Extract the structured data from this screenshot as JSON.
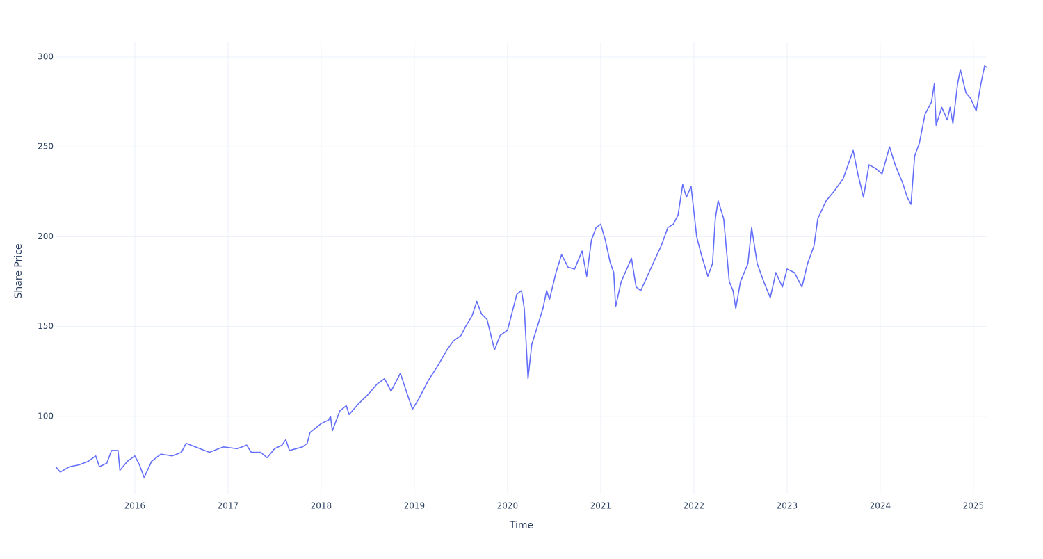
{
  "chart_data": {
    "type": "line",
    "x_label": "Time",
    "y_label": "Share Price",
    "x": [
      2015.15,
      2015.2,
      2015.3,
      2015.4,
      2015.5,
      2015.58,
      2015.62,
      2015.7,
      2015.75,
      2015.82,
      2015.84,
      2015.92,
      2016.0,
      2016.05,
      2016.1,
      2016.18,
      2016.28,
      2016.4,
      2016.5,
      2016.55,
      2016.7,
      2016.8,
      2016.95,
      2017.1,
      2017.2,
      2017.25,
      2017.35,
      2017.42,
      2017.5,
      2017.58,
      2017.62,
      2017.66,
      2017.8,
      2017.85,
      2017.88,
      2018.0,
      2018.08,
      2018.1,
      2018.12,
      2018.2,
      2018.27,
      2018.3,
      2018.4,
      2018.5,
      2018.6,
      2018.68,
      2018.75,
      2018.85,
      2018.92,
      2018.98,
      2019.05,
      2019.15,
      2019.25,
      2019.35,
      2019.42,
      2019.5,
      2019.55,
      2019.62,
      2019.67,
      2019.72,
      2019.78,
      2019.86,
      2019.92,
      2020.0,
      2020.05,
      2020.1,
      2020.15,
      2020.18,
      2020.22,
      2020.26,
      2020.32,
      2020.38,
      2020.42,
      2020.45,
      2020.52,
      2020.58,
      2020.65,
      2020.72,
      2020.8,
      2020.85,
      2020.9,
      2020.95,
      2021.0,
      2021.05,
      2021.1,
      2021.14,
      2021.16,
      2021.22,
      2021.28,
      2021.33,
      2021.38,
      2021.43,
      2021.5,
      2021.57,
      2021.65,
      2021.72,
      2021.78,
      2021.83,
      2021.88,
      2021.92,
      2021.97,
      2022.03,
      2022.08,
      2022.15,
      2022.2,
      2022.23,
      2022.26,
      2022.32,
      2022.38,
      2022.42,
      2022.45,
      2022.5,
      2022.58,
      2022.62,
      2022.68,
      2022.75,
      2022.82,
      2022.88,
      2022.95,
      2023.0,
      2023.08,
      2023.16,
      2023.22,
      2023.29,
      2023.33,
      2023.42,
      2023.5,
      2023.6,
      2023.71,
      2023.76,
      2023.82,
      2023.88,
      2023.95,
      2024.02,
      2024.1,
      2024.16,
      2024.24,
      2024.29,
      2024.33,
      2024.37,
      2024.42,
      2024.48,
      2024.55,
      2024.58,
      2024.6,
      2024.66,
      2024.72,
      2024.75,
      2024.78,
      2024.83,
      2024.86,
      2024.92,
      2024.97,
      2025.03,
      2025.08,
      2025.12,
      2025.15
    ],
    "series": [
      {
        "color": "#636efa",
        "values": [
          72,
          69,
          72,
          73,
          75,
          78,
          72,
          74,
          81,
          81,
          70,
          75,
          78,
          73,
          66,
          75,
          79,
          78,
          80,
          85,
          82,
          80,
          83,
          82,
          84,
          80,
          80,
          77,
          82,
          84,
          87,
          81,
          83,
          85,
          91,
          96,
          98,
          100,
          92,
          103,
          106,
          101,
          107,
          112,
          118,
          121,
          114,
          124,
          113,
          104,
          110,
          120,
          128,
          137,
          142,
          145,
          150,
          156,
          164,
          157,
          154,
          137,
          145,
          148,
          158,
          168,
          170,
          160,
          121,
          140,
          150,
          160,
          170,
          165,
          180,
          190,
          183,
          182,
          192,
          178,
          198,
          205,
          207,
          198,
          186,
          180,
          161,
          175,
          182,
          188,
          172,
          170,
          178,
          186,
          195,
          205,
          207,
          212,
          229,
          222,
          228,
          200,
          190,
          178,
          185,
          210,
          220,
          210,
          175,
          170,
          160,
          175,
          185,
          205,
          185,
          175,
          166,
          180,
          172,
          182,
          180,
          172,
          185,
          195,
          210,
          220,
          225,
          232,
          248,
          235,
          222,
          240,
          238,
          235,
          250,
          240,
          230,
          222,
          218,
          245,
          252,
          268,
          275,
          285,
          262,
          272,
          265,
          272,
          263,
          285,
          293,
          280,
          277,
          270,
          285,
          295,
          294
        ]
      }
    ],
    "xlim": [
      2015.15,
      2025.15
    ],
    "xticks": [
      2016,
      2017,
      2018,
      2019,
      2020,
      2021,
      2022,
      2023,
      2024,
      2025
    ],
    "ylim": [
      57,
      308.5
    ],
    "yticks": [
      100,
      150,
      200,
      250,
      300
    ],
    "grid": true
  }
}
